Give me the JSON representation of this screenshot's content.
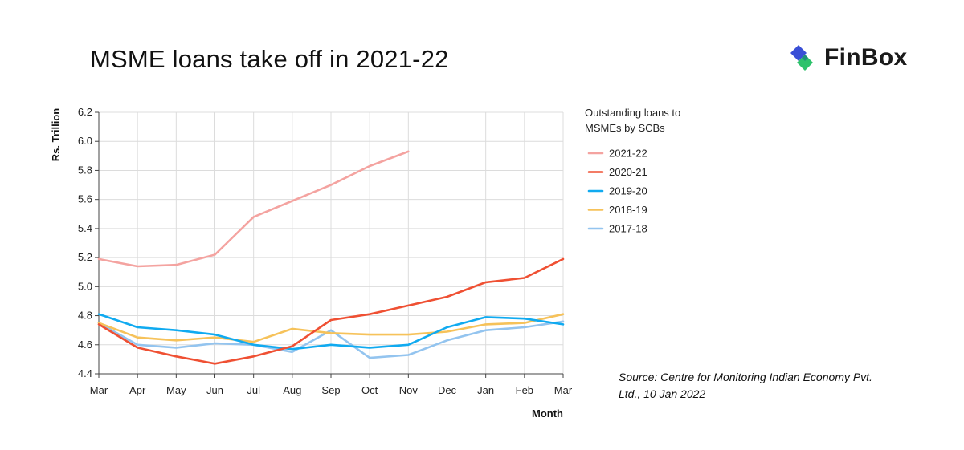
{
  "title": "MSME loans take off in 2021-22",
  "brand": {
    "name": "FinBox",
    "colors": {
      "blue": "#3a4fd6",
      "green": "#2dc26b"
    }
  },
  "source": "Source: Centre for Monitoring  Indian Economy Pvt. Ltd., 10 Jan 2022",
  "chart_data": {
    "type": "line",
    "title": "MSME loans take off in 2021-22",
    "xlabel": "Month",
    "ylabel": "Rs. Trillion",
    "ylim": [
      4.4,
      6.2
    ],
    "yticks": [
      "4.4",
      "4.6",
      "4.8",
      "5.0",
      "5.2",
      "5.4",
      "5.6",
      "5.8",
      "6.0",
      "6.2"
    ],
    "categories": [
      "Mar",
      "Apr",
      "May",
      "Jun",
      "Jul",
      "Aug",
      "Sep",
      "Oct",
      "Nov",
      "Dec",
      "Jan",
      "Feb",
      "Mar"
    ],
    "grid": true,
    "legend": {
      "title": "Outstanding loans to MSMEs by SCBs",
      "title_lines": [
        "Outstanding loans to",
        "MSMEs by SCBs"
      ],
      "position": "right"
    },
    "series": [
      {
        "name": "2021-22",
        "color": "#f4a3a0",
        "values": [
          5.19,
          5.14,
          5.15,
          5.22,
          5.48,
          5.59,
          5.7,
          5.83,
          5.93,
          null,
          null,
          null,
          null
        ]
      },
      {
        "name": "2020-21",
        "color": "#ef5033",
        "values": [
          4.74,
          4.58,
          4.52,
          4.47,
          4.52,
          4.59,
          4.77,
          4.81,
          4.87,
          4.93,
          5.03,
          5.06,
          5.19
        ]
      },
      {
        "name": "2019-20",
        "color": "#10aaf0",
        "values": [
          4.81,
          4.72,
          4.7,
          4.67,
          4.6,
          4.57,
          4.6,
          4.58,
          4.6,
          4.72,
          4.79,
          4.78,
          4.74
        ]
      },
      {
        "name": "2018-19",
        "color": "#f6c25a",
        "values": [
          4.75,
          4.65,
          4.63,
          4.65,
          4.62,
          4.71,
          4.68,
          4.67,
          4.67,
          4.69,
          4.74,
          4.75,
          4.81
        ]
      },
      {
        "name": "2017-18",
        "color": "#93c4ef",
        "values": [
          4.75,
          4.6,
          4.58,
          4.61,
          4.6,
          4.55,
          4.7,
          4.51,
          4.53,
          4.63,
          4.7,
          4.72,
          4.76
        ]
      }
    ]
  }
}
